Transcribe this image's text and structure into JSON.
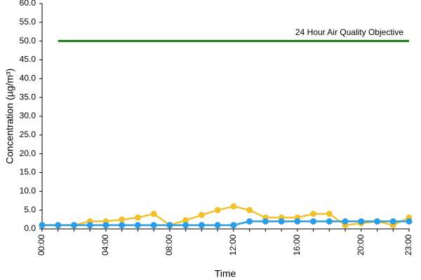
{
  "chart_data": {
    "type": "line",
    "y_label": "Concentration (µg/m³)",
    "x_label": "Time",
    "annotation": "24 Hour Air Quality Objective",
    "categories": [
      "00:00",
      null,
      null,
      null,
      "04:00",
      null,
      null,
      null,
      "08:00",
      null,
      null,
      null,
      "12:00",
      null,
      null,
      null,
      "16:00",
      null,
      null,
      null,
      "20:00",
      null,
      null,
      "23:00"
    ],
    "series": [
      {
        "color": "#1a7a1a",
        "markers": false,
        "values": [
          null,
          50,
          50,
          50,
          50,
          50,
          50,
          50,
          50,
          50,
          50,
          50,
          50,
          50,
          50,
          50,
          50,
          50,
          50,
          50,
          50,
          50,
          50,
          50
        ]
      },
      {
        "color": "#f2c22e",
        "markers": true,
        "values": [
          1,
          1,
          1,
          2,
          2,
          2.5,
          3,
          4,
          1,
          2.3,
          3.7,
          5,
          6,
          5,
          3,
          3,
          3,
          4,
          4,
          1,
          1.5,
          2,
          1,
          3
        ]
      },
      {
        "color": "#2a9de6",
        "markers": true,
        "values": [
          1,
          1,
          1,
          1,
          1,
          1,
          1,
          1,
          1,
          1,
          1,
          1,
          1,
          2,
          2,
          2,
          2,
          2,
          2,
          2,
          2,
          2,
          2,
          2
        ]
      }
    ],
    "ylim": [
      0,
      60
    ],
    "yticks": [
      {
        "value": 0,
        "label": "0.0"
      },
      {
        "value": 5,
        "label": "5.0"
      },
      {
        "value": 10,
        "label": "10.0"
      },
      {
        "value": 15,
        "label": "15.0"
      },
      {
        "value": 20,
        "label": "20.0"
      },
      {
        "value": 25,
        "label": "25.0"
      },
      {
        "value": 30,
        "label": "30.0"
      },
      {
        "value": 35,
        "label": "35.0"
      },
      {
        "value": 40,
        "label": "40.0"
      },
      {
        "value": 45,
        "label": "45.0"
      },
      {
        "value": 50,
        "label": "50.0"
      },
      {
        "value": 55,
        "label": "55.0"
      },
      {
        "value": 60,
        "label": "60.0"
      }
    ]
  }
}
